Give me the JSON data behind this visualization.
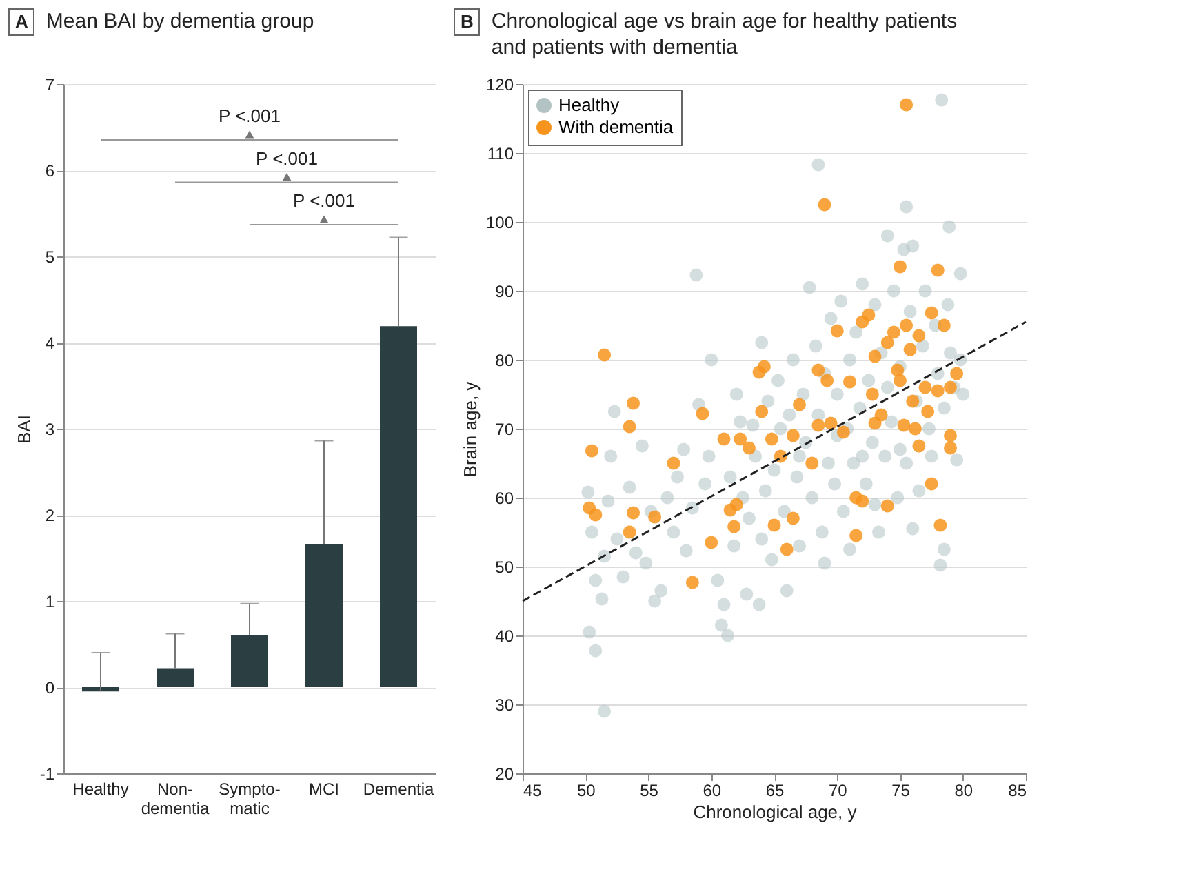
{
  "chart_data": [
    {
      "type": "bar",
      "title": "Mean BAI by dementia group",
      "ylabel": "BAI",
      "annotations": [
        "A",
        "P <.001",
        "P <.001",
        "P <.001"
      ],
      "categories": [
        "Healthy",
        "Non-dementia",
        "Sympto-matic",
        "MCI",
        "Dementia"
      ],
      "values": [
        -0.05,
        0.22,
        0.6,
        1.66,
        4.19
      ],
      "color": "#2b3e42",
      "errors": [
        [
          -0.05,
          0.4
        ],
        [
          0.22,
          0.62
        ],
        [
          0.6,
          0.97
        ],
        [
          1.66,
          2.86
        ],
        [
          4.19,
          5.22
        ]
      ],
      "ylim": [
        -1,
        7
      ],
      "yticks": [
        -1,
        0,
        1,
        2,
        3,
        4,
        5,
        6,
        7
      ],
      "grid": "y"
    },
    {
      "type": "scatter",
      "title": "Chronological age vs brain age for healthy patients and patients with dementia",
      "xlabel": "Chronological age, y",
      "ylabel": "Brain age, y",
      "annotations": [
        "B"
      ],
      "xlim": [
        45,
        85
      ],
      "xticks": [
        45,
        50,
        55,
        60,
        65,
        70,
        75,
        80,
        85
      ],
      "ylim": [
        20,
        120
      ],
      "yticks": [
        20,
        30,
        40,
        50,
        60,
        70,
        80,
        90,
        100,
        110,
        120
      ],
      "grid": "y",
      "legend": "top left",
      "series": [
        {
          "name": "Healthy",
          "color": "#b3c2c2",
          "marker": "circle",
          "x": [
            50.2,
            50.5,
            50.8,
            50.3,
            50.8,
            51.5,
            51.3,
            51.5,
            51.8,
            52,
            52.3,
            52.5,
            53,
            53.5,
            54,
            54.5,
            54.8,
            55.2,
            55.5,
            56,
            56.5,
            57,
            57.3,
            57.8,
            58,
            58.5,
            58.8,
            59,
            59.5,
            59.8,
            60,
            60.5,
            60.8,
            61,
            61.3,
            61.5,
            61.8,
            62,
            62.3,
            62.5,
            62.8,
            63,
            63.3,
            63.5,
            63.8,
            64,
            64.3,
            64.5,
            64.8,
            65,
            65.3,
            65.5,
            65.8,
            66,
            66.2,
            66.5,
            66.8,
            67,
            67.3,
            67.5,
            67.8,
            68,
            68.3,
            68.5,
            68.5,
            68.8,
            69,
            69.3,
            69.5,
            69.8,
            70,
            70.3,
            70.5,
            70.8,
            71,
            71.3,
            71.5,
            71.8,
            72,
            72.3,
            72.5,
            72.8,
            73,
            73.3,
            73.5,
            73.8,
            74,
            74.3,
            74.5,
            74.8,
            75,
            75.3,
            75.5,
            75.5,
            75.8,
            76,
            76.3,
            76.5,
            76.8,
            77,
            77.3,
            77.5,
            77.8,
            78,
            78.2,
            78.3,
            78.5,
            78.5,
            78.8,
            78.9,
            79,
            79.3,
            79.5,
            79.8,
            79.8,
            80,
            71,
            73,
            75,
            67,
            64,
            69,
            72,
            76,
            74,
            70
          ],
          "values": [
            60.8,
            55,
            48,
            40.5,
            37.8,
            29,
            45.3,
            51.5,
            59.5,
            66,
            72.5,
            54,
            48.5,
            61.5,
            52,
            67.5,
            50.5,
            58,
            45,
            46.5,
            60,
            55,
            63,
            67,
            52.3,
            58.5,
            92.3,
            73.5,
            62,
            66,
            80,
            48,
            41.5,
            44.5,
            40,
            63,
            53,
            75,
            71,
            60,
            46,
            57,
            70.5,
            66,
            44.5,
            82.5,
            61,
            74,
            51,
            64,
            77,
            70,
            58,
            46.5,
            72,
            80,
            63,
            53,
            75,
            68,
            90.5,
            60,
            82,
            108.3,
            72,
            55,
            78,
            65,
            86,
            62,
            75,
            88.5,
            58,
            70,
            80,
            65,
            84,
            73,
            91,
            62,
            77,
            68,
            88,
            55,
            81,
            66,
            98,
            71,
            90,
            60,
            79,
            96,
            102.2,
            65,
            87,
            96.5,
            74,
            61,
            82,
            90,
            70,
            66,
            85,
            78,
            50.2,
            117.7,
            52.5,
            73,
            88,
            99.3,
            81,
            76,
            65.5,
            92.5,
            80,
            75,
            52.5,
            59,
            67,
            66,
            54,
            50.5,
            66,
            55.5,
            76,
            69
          ]
        },
        {
          "name": "With dementia",
          "color": "#f7941d",
          "marker": "circle",
          "x": [
            50.3,
            50.5,
            50.8,
            51.5,
            53.5,
            53.8,
            53.5,
            53.8,
            55.5,
            57,
            58.5,
            59.3,
            60,
            61,
            61.5,
            61.8,
            62.3,
            63,
            63.8,
            64.2,
            64.8,
            65,
            65.5,
            66,
            66.5,
            67,
            68,
            68.5,
            69,
            69.2,
            69.5,
            70,
            70.5,
            71,
            71.5,
            72,
            72.5,
            72.8,
            73,
            73.5,
            74,
            74.5,
            74.8,
            75,
            75,
            75.3,
            75.5,
            75.5,
            75.8,
            76,
            76.2,
            76.5,
            76.5,
            77,
            77.2,
            77.5,
            77.5,
            78,
            78,
            78.2,
            78.5,
            79,
            79,
            79,
            79.5,
            72,
            73,
            71.5,
            66.5,
            64,
            62,
            68.5,
            74
          ],
          "values": [
            58.5,
            66.8,
            57.5,
            80.7,
            70.3,
            73.7,
            55,
            57.8,
            57.2,
            65,
            47.7,
            72.2,
            53.5,
            68.5,
            58.2,
            55.8,
            68.5,
            67.2,
            78.2,
            79,
            68.5,
            56,
            66,
            52.5,
            69,
            73.5,
            65,
            78.5,
            102.5,
            77,
            70.8,
            84.2,
            69.5,
            76.8,
            54.5,
            85.5,
            86.5,
            75,
            80.5,
            72,
            82.5,
            84,
            78.5,
            93.5,
            77,
            70.5,
            85,
            117,
            81.5,
            74,
            70,
            83.5,
            67.5,
            76,
            72.5,
            86.8,
            62,
            93,
            75.5,
            56,
            85,
            76,
            69,
            67.2,
            78,
            59.5,
            70.8,
            60,
            57,
            72.5,
            59,
            70.5,
            58.8
          ]
        },
        {
          "type": "line",
          "color": "#222222",
          "line_style": "dashed",
          "x": [
            45,
            85
          ],
          "values": [
            45,
            85.5
          ]
        }
      ]
    }
  ]
}
